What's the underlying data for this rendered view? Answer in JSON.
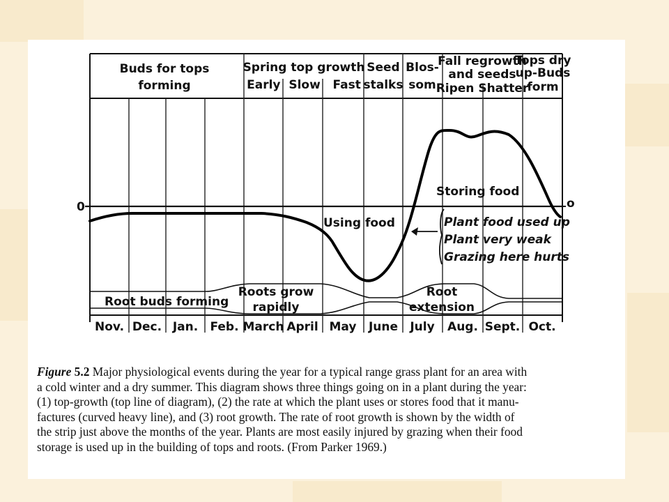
{
  "top_events": [
    {
      "lines": [
        "Buds for tops",
        "forming"
      ]
    },
    {
      "lines": [
        "Spring top growth",
        "Early  Slow   Fast"
      ]
    },
    {
      "lines": [
        "Seed",
        "stalks"
      ]
    },
    {
      "lines": [
        "Blos-",
        "som"
      ]
    },
    {
      "lines": [
        "Fall regrowth",
        "and seeds",
        "Ripen Shatter"
      ]
    },
    {
      "lines": [
        "Tops dry",
        "up-Buds",
        "form"
      ]
    }
  ],
  "zero_label_left": "0",
  "zero_label_right": "o",
  "labels": {
    "storing_food": "Storing food",
    "using_food": "Using food",
    "note_lines": [
      "Plant food used up",
      "Plant very weak",
      "Grazing here hurts"
    ]
  },
  "root_labels": {
    "buds_forming": "Root buds forming",
    "grow_rapidly": [
      "Roots grow",
      "rapidly"
    ],
    "extension": [
      "Root",
      "extension"
    ]
  },
  "months": [
    "Nov.",
    "Dec.",
    "Jan.",
    "Feb.",
    "March",
    "April",
    "May",
    "June",
    "July",
    "Aug.",
    "Sept.",
    "Oct."
  ],
  "caption": {
    "figure_label": "Figure",
    "figure_number": "5.2",
    "lines": [
      "Major physiological events during the year for a typical range grass plant for an area with",
      "a cold winter and a dry summer. This diagram shows three things going on in a plant during the year:",
      "(1) top-growth (top line of diagram), (2) the rate at which the plant uses or stores food that it manu-",
      "factures (curved heavy line), and (3) root growth. The rate of root growth is shown by the width of",
      "the strip just above the months of the year. Plants are most easily injured by grazing when their food",
      "storage is used up in the building of tops and roots. (From Parker 1969.)"
    ]
  },
  "colors": {
    "background": "#fbf1dc",
    "card": "#ffffff",
    "ink": "#111111"
  }
}
